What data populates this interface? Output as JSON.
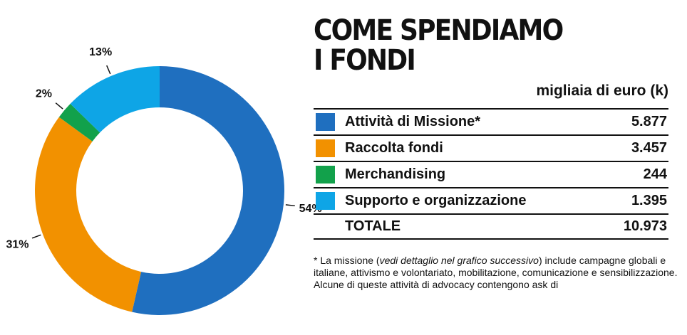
{
  "title": {
    "line1": "COME SPENDIAMO",
    "line2": "I FONDI"
  },
  "unit": "migliaia di euro (k)",
  "table": {
    "rows": [
      {
        "label": "Attività di Missione*",
        "value": "5.877",
        "color": "#1f6fbf"
      },
      {
        "label": "Raccolta fondi",
        "value": "3.457",
        "color": "#f29100"
      },
      {
        "label": "Merchandising",
        "value": "244",
        "color": "#12a14b"
      },
      {
        "label": "Supporto e organizzazione",
        "value": "1.395",
        "color": "#0ea5e6"
      }
    ],
    "total": {
      "label": "TOTALE",
      "value": "10.973"
    }
  },
  "note": {
    "prefix": "* La missione (",
    "italic": "vedi dettaglio nel grafico successivo",
    "suffix": ") include campagne globali e italiane, attivismo e volontariato, mobilitazione, comunicazione e sensibilizzazione. Alcune di queste attività di advocacy contengono ask di"
  },
  "chart_data": {
    "type": "pie",
    "variant": "donut",
    "categories": [
      "Attività di Missione*",
      "Raccolta fondi",
      "Merchandising",
      "Supporto e organizzazione"
    ],
    "values": [
      5877,
      3457,
      244,
      1395
    ],
    "percent_labels": [
      "54%",
      "31%",
      "2%",
      "13%"
    ],
    "colors": [
      "#1f6fbf",
      "#f29100",
      "#12a14b",
      "#0ea5e6"
    ],
    "start": "12 o'clock",
    "direction": "clockwise",
    "title": "",
    "legend": "table on right"
  }
}
